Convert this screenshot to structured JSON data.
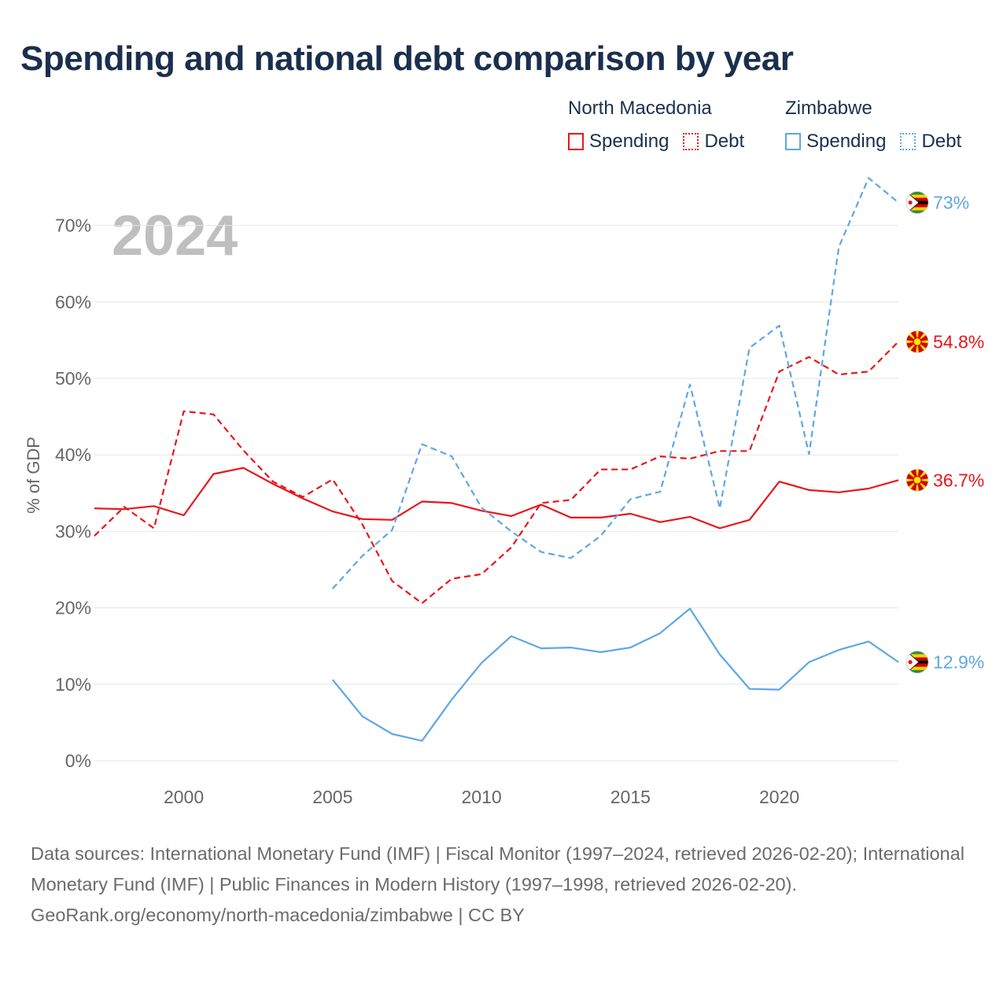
{
  "title": "Spending and national debt comparison by year",
  "legend": [
    {
      "country": "North Macedonia",
      "color": "#e8161b",
      "items": [
        {
          "label": "Spending",
          "style": "solid"
        },
        {
          "label": "Debt",
          "style": "dotted"
        }
      ]
    },
    {
      "country": "Zimbabwe",
      "color": "#5ea7e6",
      "items": [
        {
          "label": "Spending",
          "style": "solid"
        },
        {
          "label": "Debt",
          "style": "dotted"
        }
      ]
    }
  ],
  "footer": {
    "sources": "Data sources: International Monetary Fund (IMF) | Fiscal Monitor (1997–2024, retrieved 2026-02-20); International Monetary Fund (IMF) | Public Finances in Modern History (1997–1998, retrieved 2026-02-20).",
    "credit": "GeoRank.org/economy/north-macedonia/zimbabwe | CC BY"
  },
  "chart_data": {
    "type": "line",
    "year_label": "2024",
    "ylabel": "% of GDP",
    "xlabel": "",
    "xlim": [
      1997,
      2024
    ],
    "ylim": [
      0,
      75
    ],
    "x_ticks": [
      2000,
      2005,
      2010,
      2015,
      2020
    ],
    "y_ticks": [
      0,
      10,
      20,
      30,
      40,
      50,
      60,
      70
    ],
    "y_tick_labels": [
      "0%",
      "10%",
      "20%",
      "30%",
      "40%",
      "50%",
      "60%",
      "70%"
    ],
    "grid": true,
    "series": [
      {
        "name": "North Macedonia Spending",
        "country": "North Macedonia",
        "color": "#e8161b",
        "dash": "solid",
        "flag": "north-macedonia",
        "end_label": "36.7%",
        "x": [
          1997,
          1998,
          1999,
          2000,
          2001,
          2002,
          2003,
          2004,
          2005,
          2006,
          2007,
          2008,
          2009,
          2010,
          2011,
          2012,
          2013,
          2014,
          2015,
          2016,
          2017,
          2018,
          2019,
          2020,
          2021,
          2022,
          2023,
          2024
        ],
        "values": [
          33.0,
          32.9,
          33.3,
          32.1,
          37.5,
          38.3,
          36.2,
          34.3,
          32.6,
          31.6,
          31.5,
          33.9,
          33.7,
          32.7,
          32.0,
          33.5,
          31.8,
          31.8,
          32.3,
          31.2,
          31.9,
          30.4,
          31.5,
          36.5,
          35.4,
          35.1,
          35.6,
          36.7
        ]
      },
      {
        "name": "North Macedonia Debt",
        "country": "North Macedonia",
        "color": "#e8161b",
        "dash": "dashed",
        "flag": "north-macedonia",
        "end_label": "54.8%",
        "x": [
          1997,
          1998,
          1999,
          2000,
          2001,
          2002,
          2003,
          2004,
          2005,
          2006,
          2007,
          2008,
          2009,
          2010,
          2011,
          2012,
          2013,
          2014,
          2015,
          2016,
          2017,
          2018,
          2019,
          2020,
          2021,
          2022,
          2023,
          2024
        ],
        "values": [
          29.4,
          33.2,
          30.4,
          45.7,
          45.3,
          40.6,
          36.5,
          34.5,
          36.8,
          30.9,
          23.5,
          20.6,
          23.8,
          24.4,
          27.9,
          33.7,
          34.1,
          38.1,
          38.1,
          39.8,
          39.5,
          40.5,
          40.5,
          50.9,
          52.8,
          50.5,
          50.9,
          54.8
        ]
      },
      {
        "name": "Zimbabwe Spending",
        "country": "Zimbabwe",
        "color": "#5ea7e6",
        "dash": "solid",
        "flag": "zimbabwe",
        "end_label": "12.9%",
        "x": [
          2005,
          2006,
          2007,
          2008,
          2009,
          2010,
          2011,
          2012,
          2013,
          2014,
          2015,
          2016,
          2017,
          2018,
          2019,
          2020,
          2021,
          2022,
          2023,
          2024
        ],
        "values": [
          10.6,
          5.8,
          3.5,
          2.6,
          8.0,
          12.8,
          16.3,
          14.7,
          14.8,
          14.2,
          14.8,
          16.7,
          19.9,
          13.9,
          9.4,
          9.3,
          12.9,
          14.5,
          15.6,
          12.9
        ]
      },
      {
        "name": "Zimbabwe Debt",
        "country": "Zimbabwe",
        "color": "#5ea7e6",
        "dash": "dashed",
        "flag": "zimbabwe",
        "end_label": "73%",
        "x": [
          2005,
          2006,
          2007,
          2008,
          2009,
          2010,
          2011,
          2012,
          2013,
          2014,
          2015,
          2016,
          2017,
          2018,
          2019,
          2020,
          2021,
          2022,
          2023,
          2024
        ],
        "values": [
          22.5,
          26.8,
          30.2,
          41.4,
          39.8,
          33.1,
          30.0,
          27.3,
          26.5,
          29.4,
          34.2,
          35.2,
          49.2,
          33.0,
          54.0,
          56.9,
          40.1,
          67.2,
          76.2,
          73.0
        ]
      }
    ]
  }
}
